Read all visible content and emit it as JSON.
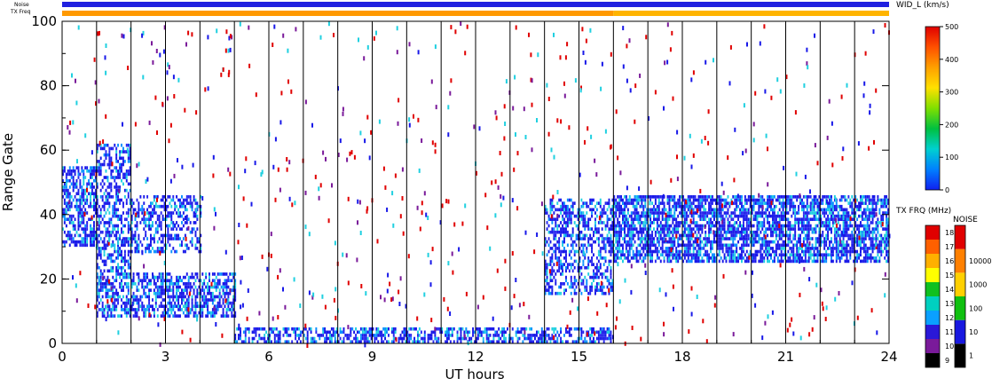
{
  "chart_data": {
    "type": "heatmap",
    "xlabel": "UT hours",
    "ylabel": "Range Gate",
    "xlim": [
      0,
      24
    ],
    "ylim": [
      0,
      100
    ],
    "x_ticks": [
      "0",
      "3",
      "6",
      "9",
      "12",
      "15",
      "18",
      "21",
      "24"
    ],
    "y_ticks": [
      "0",
      "20",
      "40",
      "60",
      "80",
      "100"
    ],
    "hour_markers": [
      1,
      2,
      3,
      4,
      5,
      6,
      7,
      8,
      9,
      10,
      11,
      12,
      13,
      14,
      15,
      16,
      17,
      18,
      19,
      20,
      21,
      22,
      23
    ],
    "top_strips": {
      "noise_label": "Noise",
      "txfreq_label": "TX Freq",
      "noise_color": "#2020e0",
      "txfreq_segments": [
        {
          "start": 0,
          "end": 16,
          "color": "#ff9900"
        },
        {
          "start": 16,
          "end": 24,
          "color": "#ffb400"
        }
      ]
    },
    "colorbar_width": {
      "title": "WID_L (km/s)",
      "min": 0,
      "max": 500,
      "ticks": [
        "0",
        "100",
        "200",
        "300",
        "400",
        "500"
      ],
      "colors": [
        "#1020f0",
        "#0080ff",
        "#00d0d0",
        "#00c040",
        "#80e000",
        "#ffe000",
        "#ffa000",
        "#ff5000",
        "#e00000"
      ]
    },
    "colorbar_txfreq": {
      "title": "TX FRQ (MHz)",
      "ticks": [
        "9",
        "10",
        "11",
        "12",
        "13",
        "14",
        "15",
        "16",
        "17",
        "18"
      ],
      "colors": [
        "#000000",
        "#7a1a9a",
        "#2a18d8",
        "#0aa0ff",
        "#00d0c0",
        "#10c020",
        "#ffff00",
        "#ffb000",
        "#ff6000",
        "#e00000"
      ]
    },
    "colorbar_noise": {
      "title": "NOISE",
      "ticks": [
        "1",
        "10",
        "100",
        "1000",
        "10000"
      ],
      "colors": [
        "#000000",
        "#1818e0",
        "#10c010",
        "#ffd000",
        "#ff8000",
        "#e00000"
      ]
    },
    "echo_regions": [
      {
        "name": "band-a",
        "x": [
          0.0,
          1.0
        ],
        "y": [
          30,
          55
        ],
        "density": 0.6
      },
      {
        "name": "band-b",
        "x": [
          1.0,
          2.0
        ],
        "y": [
          22,
          62
        ],
        "density": 0.5
      },
      {
        "name": "band-c",
        "x": [
          1.0,
          5.0
        ],
        "y": [
          8,
          22
        ],
        "density": 0.6
      },
      {
        "name": "band-d",
        "x": [
          2.0,
          4.0
        ],
        "y": [
          28,
          46
        ],
        "density": 0.45
      },
      {
        "name": "band-e",
        "x": [
          5.0,
          16.0
        ],
        "y": [
          0,
          5
        ],
        "density": 0.55
      },
      {
        "name": "band-f",
        "x": [
          14.0,
          16.0
        ],
        "y": [
          15,
          45
        ],
        "density": 0.5
      },
      {
        "name": "band-g",
        "x": [
          16.0,
          24.0
        ],
        "y": [
          25,
          46
        ],
        "density": 0.7
      }
    ]
  }
}
